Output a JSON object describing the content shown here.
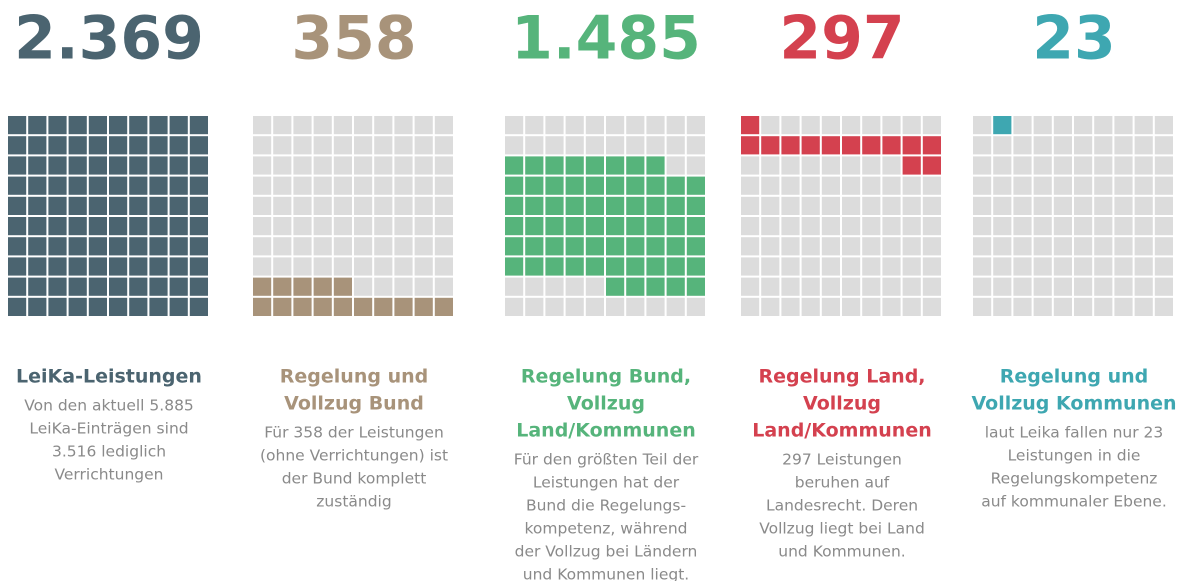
{
  "panels": [
    {
      "number": "2.369",
      "color": "#4b6470",
      "squares": 100,
      "title": [
        "LeiKa-Leistungen"
      ],
      "description": [
        "Von den aktuell 5.885",
        "LeiKa-Einträgen sind",
        "3.516 lediglich",
        "Verrichtungen"
      ]
    },
    {
      "number": "358",
      "color": "#a8937a",
      "squares": 15,
      "title": [
        "Regelung und",
        "Vollzug Bund"
      ],
      "description": [
        "Für 358 der Leistungen",
        "(ohne Verrichtungen) ist",
        "der Bund komplett",
        "zuständig"
      ]
    },
    {
      "number": "1.485",
      "color": "#56b47b",
      "squares": 63,
      "title": [
        "Regelung Bund,",
        "Vollzug",
        "Land/Kommunen"
      ],
      "description": [
        "Für den größten Teil der",
        "Leistungen hat der",
        "Bund die Regelungs-",
        "kompetenz, während",
        "der Vollzug bei Ländern",
        "und Kommunen liegt."
      ]
    },
    {
      "number": "297",
      "color": "#d4414f",
      "squares": 13,
      "title": [
        "Regelung Land,",
        "Vollzug",
        "Land/Kommunen"
      ],
      "description": [
        "297 Leistungen",
        "beruhen auf",
        "Landesrecht. Deren",
        "Vollzug liegt bei Land",
        "und Kommunen."
      ]
    },
    {
      "number": "23",
      "color": "#3ea7b1",
      "squares": 1,
      "title": [
        "Regelung und",
        "Vollzug Kommunen"
      ],
      "description": [
        "laut Leika fallen nur 23",
        "Leistungen in die",
        "Regelungskompetenz",
        "auf kommunaler Ebene."
      ]
    }
  ]
}
